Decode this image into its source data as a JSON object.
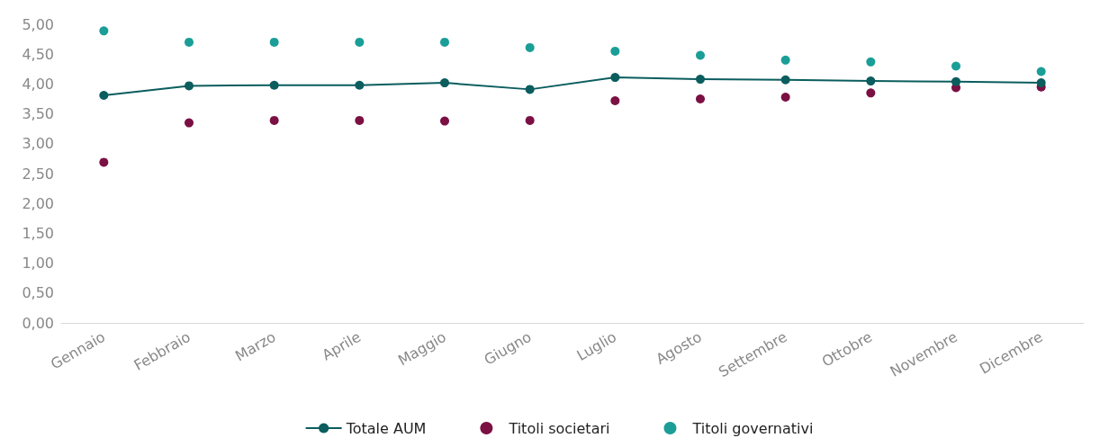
{
  "chart_data": {
    "type": "line",
    "categories": [
      "Gennaio",
      "Febbraio",
      "Marzo",
      "Aprile",
      "Maggio",
      "Giugno",
      "Luglio",
      "Agosto",
      "Settembre",
      "Ottobre",
      "Novembre",
      "Dicembre"
    ],
    "series": [
      {
        "name": "Totale AUM",
        "color": "#0b5d5e",
        "values": [
          3.81,
          3.97,
          3.98,
          3.98,
          4.02,
          3.91,
          4.11,
          4.08,
          4.07,
          4.05,
          4.04,
          4.02
        ]
      },
      {
        "name": "Titoli societari",
        "type": "scatter",
        "color": "#7b1043",
        "values": [
          2.69,
          3.35,
          3.39,
          3.39,
          3.38,
          3.39,
          3.72,
          3.75,
          3.78,
          3.85,
          3.94,
          3.95
        ]
      },
      {
        "name": "Titoli governativi",
        "type": "scatter",
        "color": "#1a9e97",
        "values": [
          4.89,
          4.7,
          4.7,
          4.7,
          4.7,
          4.61,
          4.55,
          4.48,
          4.4,
          4.37,
          4.3,
          4.21
        ]
      }
    ],
    "ylim": [
      0,
      5
    ],
    "yticks": [
      {
        "value": 0,
        "label": "0,00"
      },
      {
        "value": 0.5,
        "label": "0,50"
      },
      {
        "value": 1,
        "label": "1,00"
      },
      {
        "value": 1.5,
        "label": "1,50"
      },
      {
        "value": 2,
        "label": "2,00"
      },
      {
        "value": 2.5,
        "label": "2,50"
      },
      {
        "value": 3,
        "label": "3,00"
      },
      {
        "value": 3.5,
        "label": "3,50"
      },
      {
        "value": 4,
        "label": "4,00"
      },
      {
        "value": 4.5,
        "label": "4,50"
      },
      {
        "value": 5,
        "label": "5,00"
      }
    ],
    "legend": "bottom",
    "marker": "circle",
    "line_style": "solid"
  }
}
